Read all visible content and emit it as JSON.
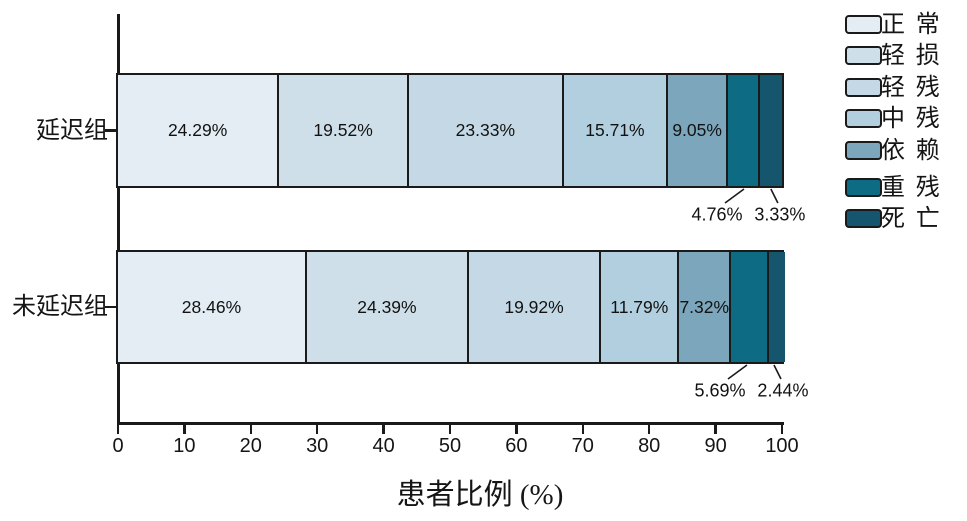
{
  "chart_data": {
    "type": "bar",
    "stacked": true,
    "orientation": "horizontal",
    "title": "",
    "xlabel": "患者比例 (%)",
    "ylabel": "",
    "xlim": [
      0,
      100
    ],
    "x_ticks": [
      0,
      10,
      20,
      30,
      40,
      50,
      60,
      70,
      80,
      90,
      100
    ],
    "grid": false,
    "legend_position": "right",
    "categories": [
      "延迟组",
      "未延迟组"
    ],
    "series": [
      {
        "name": "正常",
        "color": "#e3edf3",
        "values": [
          24.29,
          28.46
        ],
        "labels": [
          "24.29%",
          "28.46%"
        ],
        "label_placement": "inside"
      },
      {
        "name": "轻损",
        "color": "#cfdfe9",
        "values": [
          19.52,
          24.39
        ],
        "labels": [
          "19.52%",
          "24.39%"
        ],
        "label_placement": "inside"
      },
      {
        "name": "轻残",
        "color": "#c4d9e5",
        "values": [
          23.33,
          19.92
        ],
        "labels": [
          "23.33%",
          "19.92%"
        ],
        "label_placement": "inside"
      },
      {
        "name": "中残",
        "color": "#b1cfde",
        "values": [
          15.71,
          11.79
        ],
        "labels": [
          "15.71%",
          "11.79%"
        ],
        "label_placement": "inside"
      },
      {
        "name": "依赖",
        "color": "#7ba6bc",
        "values": [
          9.05,
          7.32
        ],
        "labels": [
          "9.05%",
          "7.32%"
        ],
        "label_placement": "inside"
      },
      {
        "name": "重残",
        "color": "#0e6b84",
        "values": [
          4.76,
          5.69
        ],
        "labels": [
          "4.76%",
          "5.69%"
        ],
        "label_placement": "callout-below"
      },
      {
        "name": "死亡",
        "color": "#15556e",
        "values": [
          3.33,
          2.44
        ],
        "labels": [
          "3.33%",
          "2.44%"
        ],
        "label_placement": "callout-below"
      }
    ],
    "axis_color": "#1a1a1a"
  }
}
